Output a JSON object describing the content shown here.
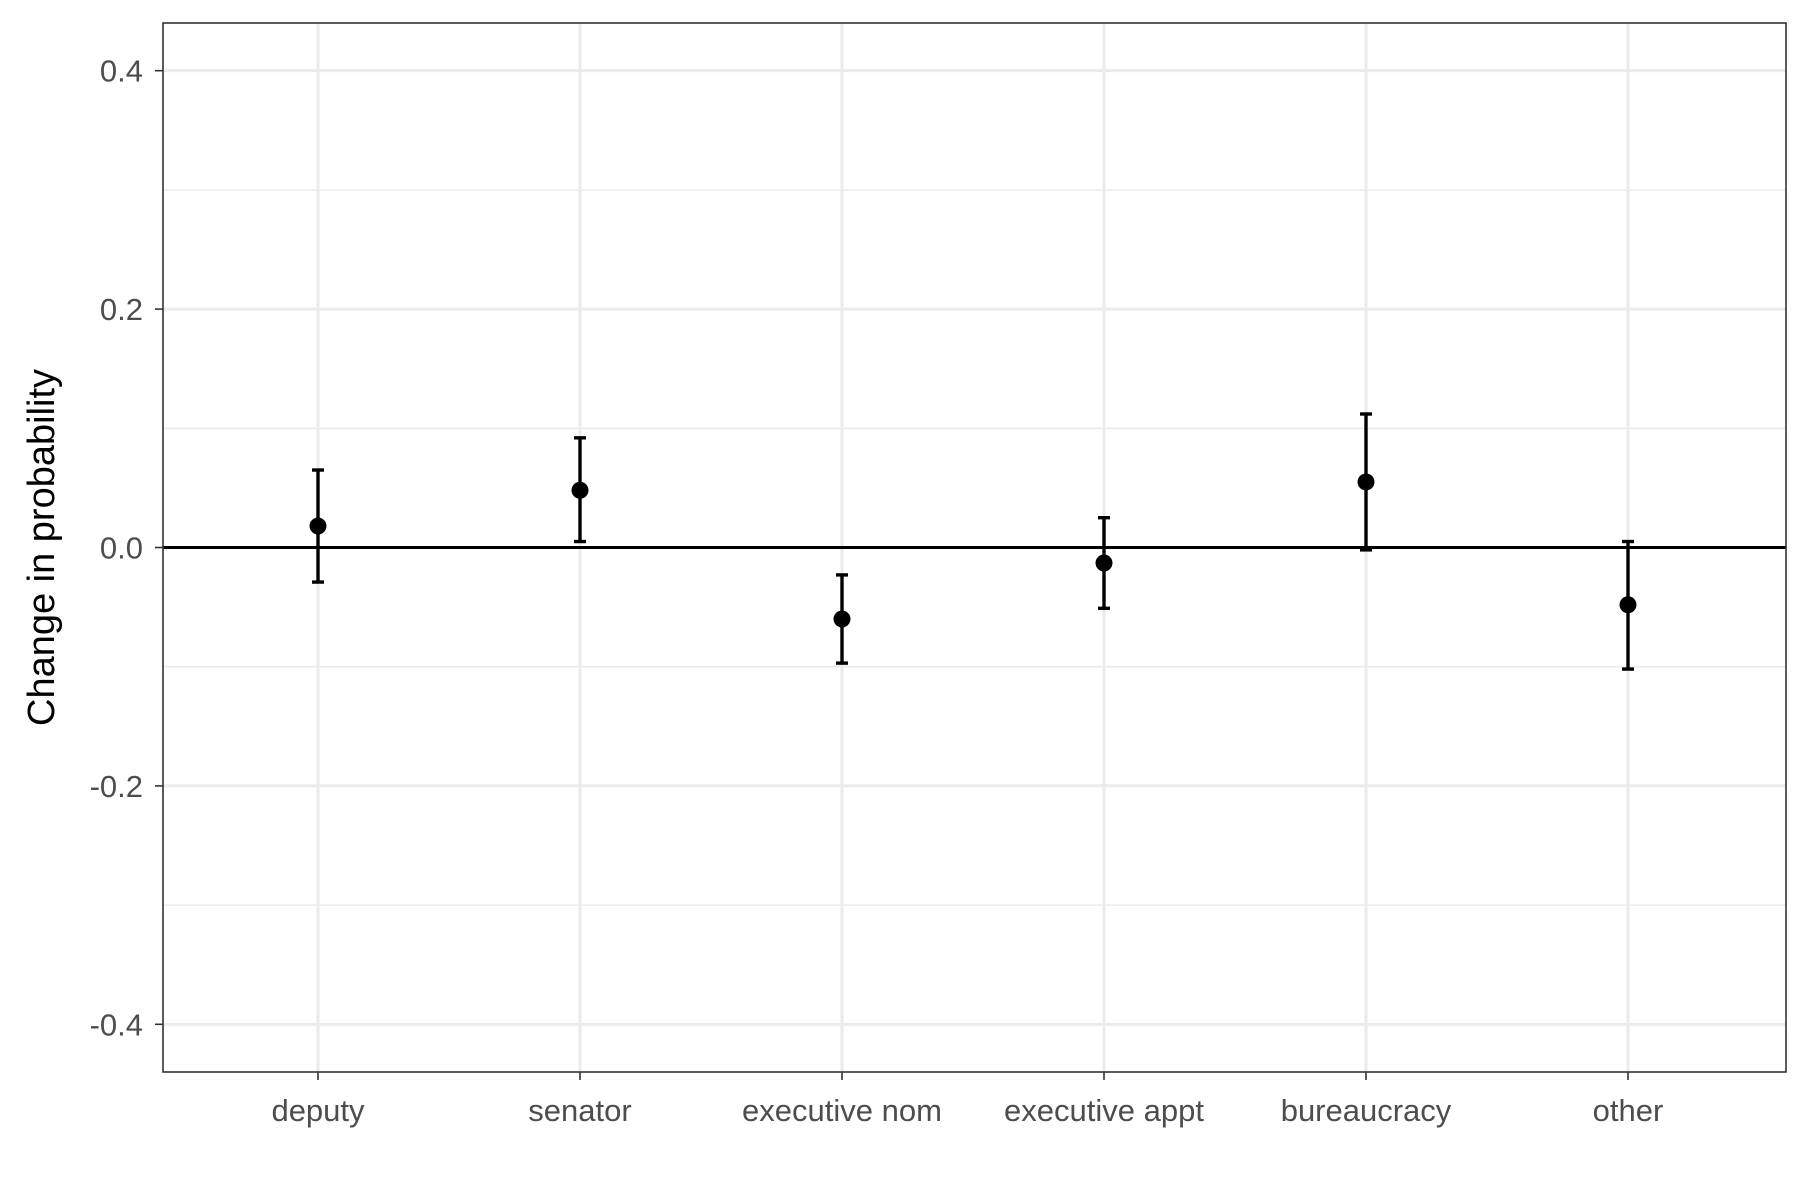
{
  "chart_data": {
    "type": "scatter",
    "title": "",
    "xlabel": "",
    "ylabel": "Change in probability",
    "categories": [
      "deputy",
      "senator",
      "executive nom",
      "executive appt",
      "bureaucracy",
      "other"
    ],
    "values": [
      0.018,
      0.048,
      -0.06,
      -0.013,
      0.055,
      -0.048
    ],
    "ci_low": [
      -0.029,
      0.005,
      -0.097,
      -0.051,
      -0.002,
      -0.102
    ],
    "ci_high": [
      0.065,
      0.092,
      -0.023,
      0.025,
      0.112,
      0.005
    ],
    "ylim": [
      -0.44,
      0.44
    ],
    "y_ticks": [
      "0.4",
      "0.2",
      "0.0",
      "-0.2",
      "-0.4"
    ],
    "y_tick_values": [
      0.4,
      0.2,
      0.0,
      -0.2,
      -0.4
    ],
    "y_minor_grid": [
      0.3,
      0.1,
      -0.1,
      -0.3
    ],
    "reference_line": 0,
    "grid": true,
    "legend": "none",
    "colors": {
      "points": "#000000",
      "grid": "#ebebeb",
      "panel_border": "#333333",
      "tick_text": "#4d4d4d"
    }
  }
}
